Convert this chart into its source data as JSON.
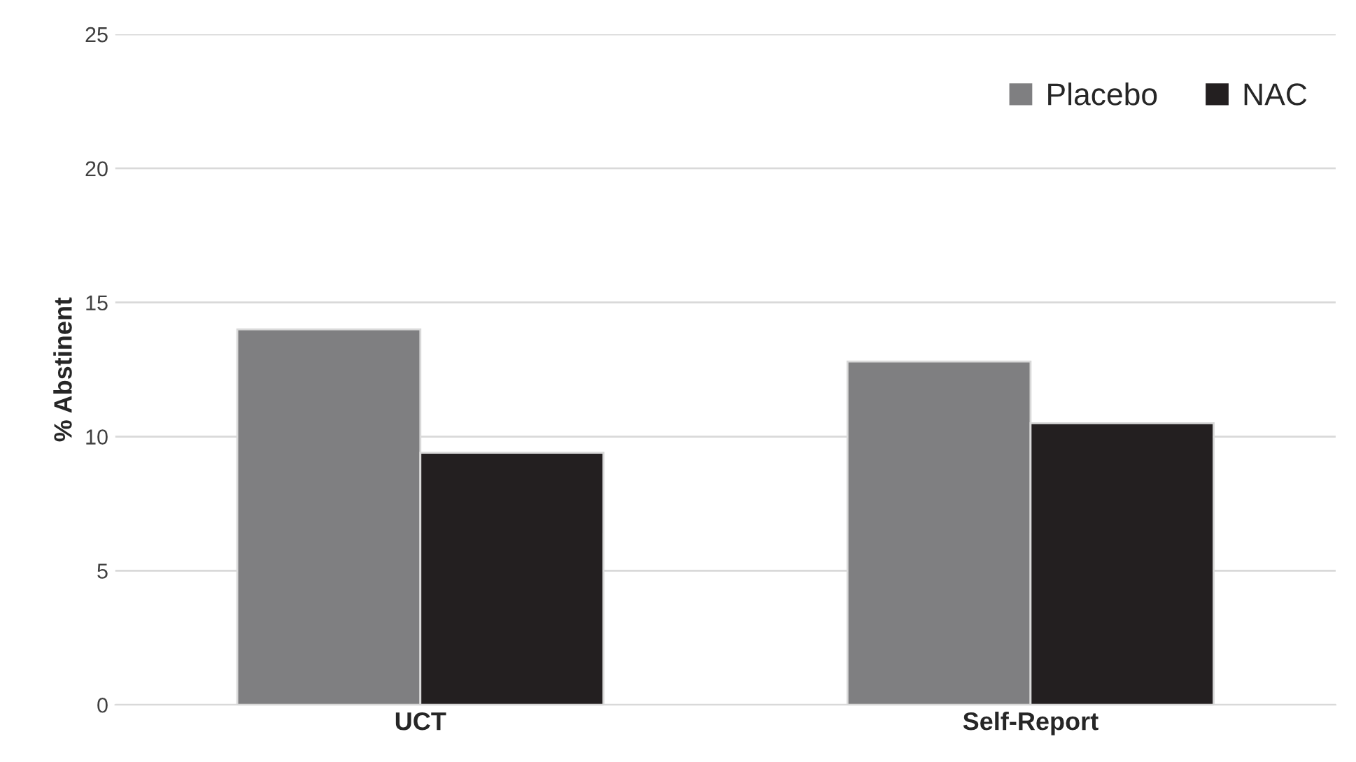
{
  "chart_data": {
    "type": "bar",
    "ylabel": "% Abstinent",
    "categories": [
      "UCT",
      "Self-Report"
    ],
    "series": [
      {
        "name": "Placebo",
        "color": "#7f7f81",
        "values": [
          14.0,
          12.8
        ]
      },
      {
        "name": "NAC",
        "color": "#231f20",
        "values": [
          9.4,
          10.5
        ]
      }
    ],
    "ylim": [
      0,
      25
    ],
    "yticks": [
      0,
      5,
      10,
      15,
      20,
      25
    ],
    "grid": "y",
    "legend": "top right"
  }
}
